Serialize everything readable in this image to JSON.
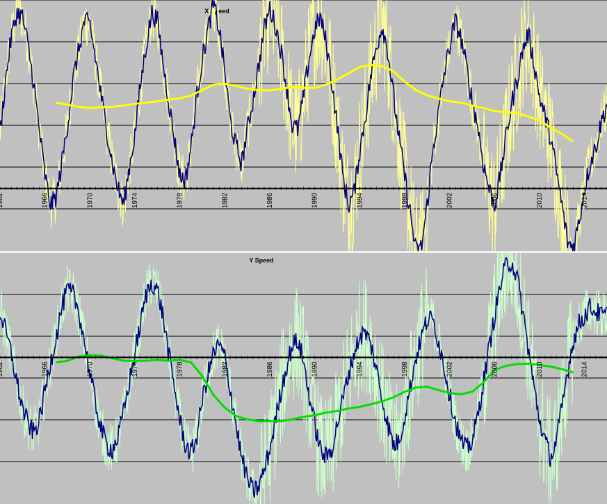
{
  "chart_data": [
    {
      "type": "line",
      "title": "X Speed",
      "xlabel": "",
      "ylabel": "",
      "xlim": [
        1962,
        2016
      ],
      "ylim": [
        -1.5,
        4.5
      ],
      "grid": "horizontal",
      "ticks": [
        "1962",
        "1966",
        "1970",
        "1974",
        "1978",
        "1982",
        "1986",
        "1990",
        "1994",
        "1998",
        "2002",
        "2006",
        "2010",
        "2014"
      ],
      "colors": {
        "raw": "#ffff99",
        "detail": "#000080",
        "trend": "#ffff00",
        "background": "#c0c0c0"
      },
      "series": [
        {
          "role": "detail",
          "x": [
            1962,
            1962.5,
            1963,
            1963.5,
            1964,
            1964.5,
            1965,
            1965.5,
            1966,
            1966.5,
            1967,
            1967.5,
            1968,
            1968.5,
            1969,
            1969.5,
            1970,
            1970.5,
            1971,
            1971.5,
            1972,
            1972.5,
            1973,
            1973.5,
            1974,
            1974.5,
            1975,
            1975.5,
            1976,
            1976.5,
            1977,
            1977.5,
            1978,
            1978.5,
            1979,
            1979.5,
            1980,
            1980.5,
            1981,
            1981.5,
            1982,
            1982.5,
            1983,
            1983.5,
            1984,
            1984.5,
            1985,
            1985.5,
            1986,
            1986.5,
            1987,
            1987.5,
            1988,
            1988.5,
            1989,
            1989.5,
            1990,
            1990.5,
            1991,
            1991.5,
            1992,
            1992.5,
            1993,
            1993.5,
            1994,
            1994.5,
            1995,
            1995.5,
            1996,
            1996.5,
            1997,
            1997.5,
            1998,
            1998.5,
            1999,
            1999.5,
            2000,
            2000.5,
            2001,
            2001.5,
            2002,
            2002.5,
            2003,
            2003.5,
            2004,
            2004.5,
            2005,
            2005.5,
            2006,
            2006.5,
            2007,
            2007.5,
            2008,
            2008.5,
            2009,
            2009.5,
            2010,
            2010.5,
            2011,
            2011.5,
            2012,
            2012.5,
            2013,
            2013.5,
            2014,
            2014.5,
            2015,
            2015.5,
            2016
          ],
          "y": [
            1.3,
            2.6,
            3.6,
            4.2,
            4.1,
            3.4,
            2.5,
            1.4,
            0.3,
            -0.4,
            -0.2,
            0.6,
            1.5,
            2.6,
            3.3,
            4.0,
            3.9,
            3.1,
            2.2,
            1.4,
            0.6,
            0.0,
            -0.4,
            0.5,
            1.3,
            2.5,
            3.4,
            4.2,
            4.0,
            3.0,
            2.1,
            1.2,
            0.3,
            0.2,
            1.0,
            2.2,
            3.1,
            3.8,
            4.4,
            3.8,
            2.8,
            1.6,
            1.0,
            0.6,
            1.4,
            2.1,
            2.9,
            3.8,
            4.3,
            3.9,
            3.3,
            2.4,
            1.5,
            1.4,
            2.2,
            3.1,
            3.8,
            4.1,
            3.5,
            2.6,
            1.5,
            0.3,
            -0.4,
            -0.1,
            0.9,
            1.7,
            2.7,
            3.4,
            3.9,
            3.3,
            2.2,
            1.2,
            0.3,
            -0.6,
            -1.5,
            -1.4,
            -0.4,
            0.9,
            1.8,
            2.7,
            3.4,
            4.0,
            3.6,
            2.9,
            2.1,
            1.5,
            0.6,
            0.0,
            -0.4,
            0.3,
            1.2,
            2.0,
            2.6,
            3.3,
            3.7,
            3.0,
            2.2,
            1.7,
            1.2,
            0.4,
            -0.4,
            -1.3,
            -1.4,
            -0.8,
            0.0,
            0.6,
            1.0,
            1.6,
            2.0
          ]
        },
        {
          "role": "trend",
          "x": [
            1967,
            1968,
            1969,
            1970,
            1971,
            1972,
            1973,
            1974,
            1975,
            1976,
            1977,
            1978,
            1979,
            1980,
            1981,
            1982,
            1983,
            1984,
            1985,
            1986,
            1987,
            1988,
            1989,
            1990,
            1991,
            1992,
            1993,
            1994,
            1995,
            1996,
            1997,
            1998,
            1999,
            2000,
            2001,
            2002,
            2003,
            2004,
            2005,
            2006,
            2007,
            2008,
            2009,
            2010,
            2011,
            2012,
            2013
          ],
          "y": [
            2.05,
            2.0,
            1.95,
            1.92,
            1.94,
            1.95,
            1.98,
            2.02,
            2.05,
            2.08,
            2.12,
            2.15,
            2.22,
            2.35,
            2.48,
            2.5,
            2.45,
            2.38,
            2.35,
            2.34,
            2.38,
            2.42,
            2.4,
            2.4,
            2.48,
            2.6,
            2.75,
            2.9,
            2.95,
            2.92,
            2.8,
            2.55,
            2.35,
            2.22,
            2.15,
            2.08,
            2.05,
            1.98,
            1.92,
            1.85,
            1.82,
            1.8,
            1.72,
            1.62,
            1.45,
            1.3,
            1.12
          ]
        }
      ]
    },
    {
      "type": "line",
      "title": "Y Speed",
      "xlabel": "",
      "ylabel": "",
      "xlim": [
        1962,
        2016
      ],
      "ylim": [
        -3.5,
        2.5
      ],
      "grid": "horizontal",
      "ticks": [
        "1962",
        "1966",
        "1970",
        "1974",
        "1978",
        "1982",
        "1986",
        "1990",
        "1994",
        "1998",
        "2002",
        "2006",
        "2010",
        "2014"
      ],
      "colors": {
        "raw": "#ccffcc",
        "detail": "#000080",
        "trend": "#00dd00",
        "background": "#c0c0c0"
      },
      "series": [
        {
          "role": "detail",
          "x": [
            1962,
            1962.5,
            1963,
            1963.5,
            1964,
            1964.5,
            1965,
            1965.5,
            1966,
            1966.5,
            1967,
            1967.5,
            1968,
            1968.5,
            1969,
            1969.5,
            1970,
            1970.5,
            1971,
            1971.5,
            1972,
            1972.5,
            1973,
            1973.5,
            1974,
            1974.5,
            1975,
            1975.5,
            1976,
            1976.5,
            1977,
            1977.5,
            1978,
            1978.5,
            1979,
            1979.5,
            1980,
            1980.5,
            1981,
            1981.5,
            1982,
            1982.5,
            1983,
            1983.5,
            1984,
            1984.5,
            1985,
            1985.5,
            1986,
            1986.5,
            1987,
            1987.5,
            1988,
            1988.5,
            1989,
            1989.5,
            1990,
            1990.5,
            1991,
            1991.5,
            1992,
            1992.5,
            1993,
            1993.5,
            1994,
            1994.5,
            1995,
            1995.5,
            1996,
            1996.5,
            1997,
            1997.5,
            1998,
            1998.5,
            1999,
            1999.5,
            2000,
            2000.5,
            2001,
            2001.5,
            2002,
            2002.5,
            2003,
            2003.5,
            2004,
            2004.5,
            2005,
            2005.5,
            2006,
            2006.5,
            2007,
            2007.5,
            2008,
            2008.5,
            2009,
            2009.5,
            2010,
            2010.5,
            2011,
            2011.5,
            2012,
            2012.5,
            2013,
            2013.5,
            2014,
            2014.5,
            2015,
            2015.5,
            2016
          ],
          "y": [
            1.1,
            0.6,
            0.1,
            -0.6,
            -1.2,
            -1.6,
            -1.8,
            -1.5,
            -0.8,
            -0.1,
            0.5,
            1.2,
            1.6,
            1.5,
            1.1,
            0.4,
            -0.4,
            -1.1,
            -1.7,
            -2.1,
            -2.2,
            -1.9,
            -1.3,
            -0.6,
            0.1,
            0.8,
            1.5,
            1.8,
            1.6,
            1.0,
            0.1,
            -0.7,
            -1.5,
            -2.1,
            -2.3,
            -1.9,
            -1.0,
            -0.4,
            0.1,
            0.3,
            0.0,
            -0.8,
            -1.6,
            -2.4,
            -2.9,
            -3.2,
            -3.1,
            -2.7,
            -2.2,
            -1.5,
            -0.8,
            -0.2,
            0.3,
            0.4,
            -0.1,
            -0.9,
            -1.6,
            -2.2,
            -2.4,
            -2.2,
            -1.6,
            -1.0,
            -0.4,
            0.1,
            0.5,
            0.6,
            0.3,
            -0.3,
            -1.0,
            -1.6,
            -2.1,
            -2.0,
            -1.4,
            -0.7,
            0.0,
            0.5,
            0.9,
            0.9,
            0.4,
            -0.2,
            -0.9,
            -1.5,
            -2.0,
            -2.2,
            -2.0,
            -1.4,
            -0.6,
            0.2,
            1.0,
            1.7,
            2.2,
            2.3,
            1.9,
            1.1,
            0.2,
            -0.7,
            -1.5,
            -2.0,
            -2.4,
            -2.0,
            -1.2,
            -0.3,
            0.4,
            0.8,
            1.0,
            1.2,
            1.1,
            1.0,
            1.0
          ]
        },
        {
          "role": "trend",
          "x": [
            1967,
            1968,
            1969,
            1970,
            1971,
            1972,
            1973,
            1974,
            1975,
            1976,
            1977,
            1978,
            1979,
            1980,
            1981,
            1982,
            1983,
            1984,
            1985,
            1986,
            1987,
            1988,
            1989,
            1990,
            1991,
            1992,
            1993,
            1994,
            1995,
            1996,
            1997,
            1998,
            1999,
            2000,
            2001,
            2002,
            2003,
            2004,
            2005,
            2006,
            2007,
            2008,
            2009,
            2010,
            2011,
            2012,
            2013
          ],
          "y": [
            -0.12,
            -0.08,
            0.02,
            0.05,
            0.04,
            -0.02,
            -0.08,
            -0.08,
            -0.08,
            -0.06,
            -0.08,
            -0.06,
            -0.12,
            -0.45,
            -0.9,
            -1.2,
            -1.4,
            -1.48,
            -1.52,
            -1.52,
            -1.52,
            -1.48,
            -1.42,
            -1.38,
            -1.32,
            -1.28,
            -1.22,
            -1.18,
            -1.12,
            -1.05,
            -0.95,
            -0.82,
            -0.72,
            -0.7,
            -0.78,
            -0.85,
            -0.88,
            -0.82,
            -0.6,
            -0.3,
            -0.2,
            -0.16,
            -0.15,
            -0.18,
            -0.22,
            -0.28,
            -0.36
          ]
        }
      ]
    }
  ]
}
